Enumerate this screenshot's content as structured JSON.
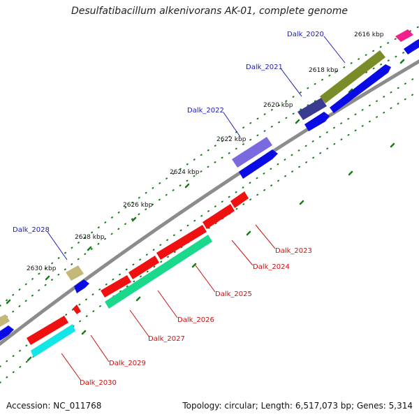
{
  "title": "Desulfatibacillum alkenivorans AK-01, complete genome",
  "footer": {
    "accession": "Accession: NC_011768",
    "summary": "Topology: circular; Length: 6,517,073 bp; Genes: 5,314"
  },
  "colors": {
    "backbone": "#8c8c8c",
    "tick": "#1a7a1a",
    "label_top": "#1a1ab8",
    "label_bottom": "#cc1010",
    "leader": "#1a1ab8",
    "leader_bottom": "#cc1010",
    "blue_cds": "#0a0ae6",
    "red_cds": "#f01010",
    "cyan_cds": "#12e6e6",
    "green_cds": "#1ad98c",
    "olive_gene": "#7a8c28",
    "purple_gene": "#7a6ae0",
    "navy_gene": "#3a3a90",
    "khaki_gene": "#c2b878",
    "magenta_gene": "#f0208c"
  },
  "kbp_marks": [
    {
      "id": "k2616",
      "label": "2616 kbp"
    },
    {
      "id": "k2618",
      "label": "2618 kbp"
    },
    {
      "id": "k2620",
      "label": "2620 kbp"
    },
    {
      "id": "k2622",
      "label": "2622 kbp"
    },
    {
      "id": "k2624",
      "label": "2624 kbp"
    },
    {
      "id": "k2626",
      "label": "2626 kbp"
    },
    {
      "id": "k2628",
      "label": "2628 kbp"
    },
    {
      "id": "k2630",
      "label": "2630 kbp"
    }
  ],
  "genes_top": [
    {
      "id": "g2020",
      "label": "Dalk_2020"
    },
    {
      "id": "g2021",
      "label": "Dalk_2021"
    },
    {
      "id": "g2022",
      "label": "Dalk_2022"
    },
    {
      "id": "g2028",
      "label": "Dalk_2028"
    }
  ],
  "genes_bottom": [
    {
      "id": "g2023",
      "label": "Dalk_2023"
    },
    {
      "id": "g2024",
      "label": "Dalk_2024"
    },
    {
      "id": "g2025",
      "label": "Dalk_2025"
    },
    {
      "id": "g2026",
      "label": "Dalk_2026"
    },
    {
      "id": "g2027",
      "label": "Dalk_2027"
    },
    {
      "id": "g2029",
      "label": "Dalk_2029"
    },
    {
      "id": "g2030",
      "label": "Dalk_2030"
    }
  ]
}
